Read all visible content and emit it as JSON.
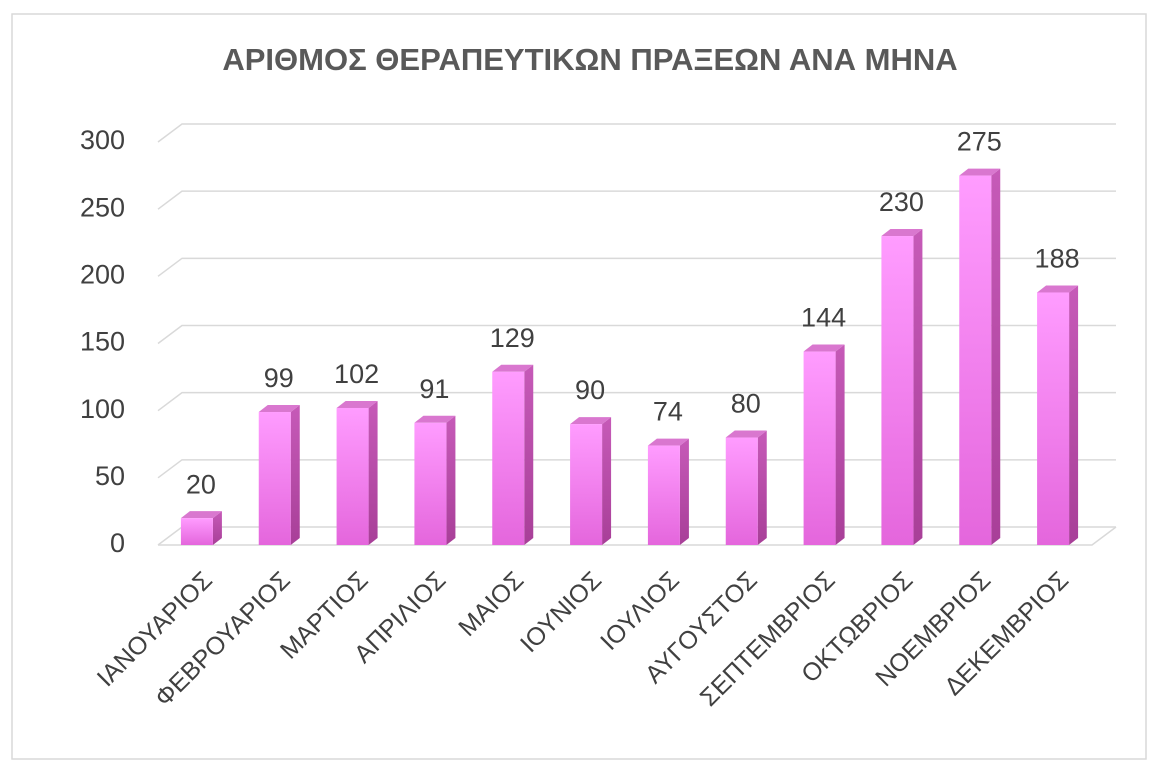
{
  "chart_data": {
    "type": "bar",
    "title": "ΑΡΙΘΜΟΣ ΘΕΡΑΠΕΥΤΙΚΩΝ ΠΡΑΞΕΩΝ ΑΝΑ ΜΗΝΑ",
    "categories": [
      "ΙΑΝΟΥΑΡΙΟΣ",
      "ΦΕΒΡΟΥΑΡΙΟΣ",
      "ΜΑΡΤΙΟΣ",
      "ΑΠΡΙΛΙΟΣ",
      "ΜΑΙΟΣ",
      "ΙΟΥΝΙΟΣ",
      "ΙΟΥΛΙΟΣ",
      "ΑΥΓΟΥΣΤΟΣ",
      "ΣΕΠΤΕΜΒΡΙΟΣ",
      "ΟΚΤΩΒΡΙΟΣ",
      "ΝΟΕΜΒΡΙΟΣ",
      "ΔΕΚΕΜΒΡΙΟΣ"
    ],
    "values": [
      20,
      99,
      102,
      91,
      129,
      90,
      74,
      80,
      144,
      230,
      275,
      188
    ],
    "color": "#f08cf0",
    "ylim": [
      0,
      300
    ],
    "yticks": [
      0,
      50,
      100,
      150,
      200,
      250,
      300
    ],
    "grid": true
  }
}
